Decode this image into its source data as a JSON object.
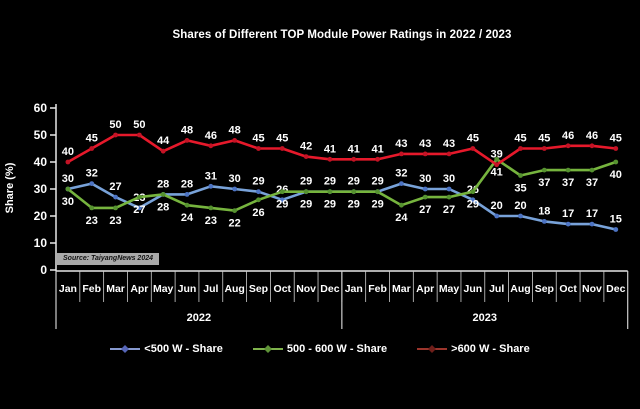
{
  "header": {
    "title": "Shares of Different TOP Module Power Ratings in 2022 / 2023"
  },
  "source_note": "Source: TaiyangNews 2024",
  "chart_data": {
    "type": "line",
    "title": "Shares of Different TOP Module Power Ratings in 2022 / 2023",
    "xlabel": "",
    "ylabel": "Share (%)",
    "ylim": [
      0,
      60
    ],
    "yticks": [
      0,
      10,
      20,
      30,
      40,
      50,
      60
    ],
    "grid": "off",
    "legend_position": "bottom",
    "categories": [
      "Jan",
      "Feb",
      "Mar",
      "Apr",
      "May",
      "Jun",
      "Jul",
      "Aug",
      "Sep",
      "Oct",
      "Nov",
      "Dec",
      "Jan",
      "Feb",
      "Mar",
      "Apr",
      "May",
      "Jun",
      "Jul",
      "Aug",
      "Sep",
      "Oct",
      "Nov",
      "Dec"
    ],
    "year_groups": [
      {
        "label": "2022",
        "span": 12
      },
      {
        "label": "2023",
        "span": 12
      }
    ],
    "series": [
      {
        "name": "<500 W - Share",
        "color": "#78a2d9",
        "marker_color": "#4d74c4",
        "labels": "above",
        "values": [
          30,
          32,
          27,
          23,
          28,
          28,
          31,
          30,
          29,
          26,
          29,
          29,
          29,
          29,
          32,
          30,
          30,
          26,
          20,
          20,
          18,
          17,
          17,
          15
        ]
      },
      {
        "name": "500 - 600 W - Share",
        "color": "#76b43e",
        "marker_color": "#569230",
        "labels": "below",
        "values": [
          30,
          23,
          23,
          27,
          28,
          24,
          23,
          22,
          26,
          29,
          29,
          29,
          29,
          29,
          24,
          27,
          27,
          29,
          41,
          35,
          37,
          37,
          37,
          40
        ]
      },
      {
        "name": ">600 W - Share",
        "color": "#e6192b",
        "marker_color": "#c41325",
        "labels": "above",
        "values": [
          40,
          45,
          50,
          50,
          44,
          48,
          46,
          48,
          45,
          45,
          42,
          41,
          41,
          41,
          43,
          43,
          43,
          45,
          39,
          45,
          45,
          46,
          46,
          45
        ]
      }
    ]
  },
  "legend": {
    "items": [
      {
        "label": "<500 W - Share",
        "line_color": "#8799cf",
        "marker_color": "#5666b8"
      },
      {
        "label": "500 - 600 W - Share",
        "line_color": "#7fb34c",
        "marker_color": "#5f9338"
      },
      {
        "label": ">600 W - Share",
        "line_color": "#9c352c",
        "marker_color": "#6f1f1a"
      }
    ]
  },
  "colors": {
    "background": "#000000",
    "axis": "#e8e8e8",
    "separator": "#cfcfcf",
    "text": "#ffffff"
  }
}
